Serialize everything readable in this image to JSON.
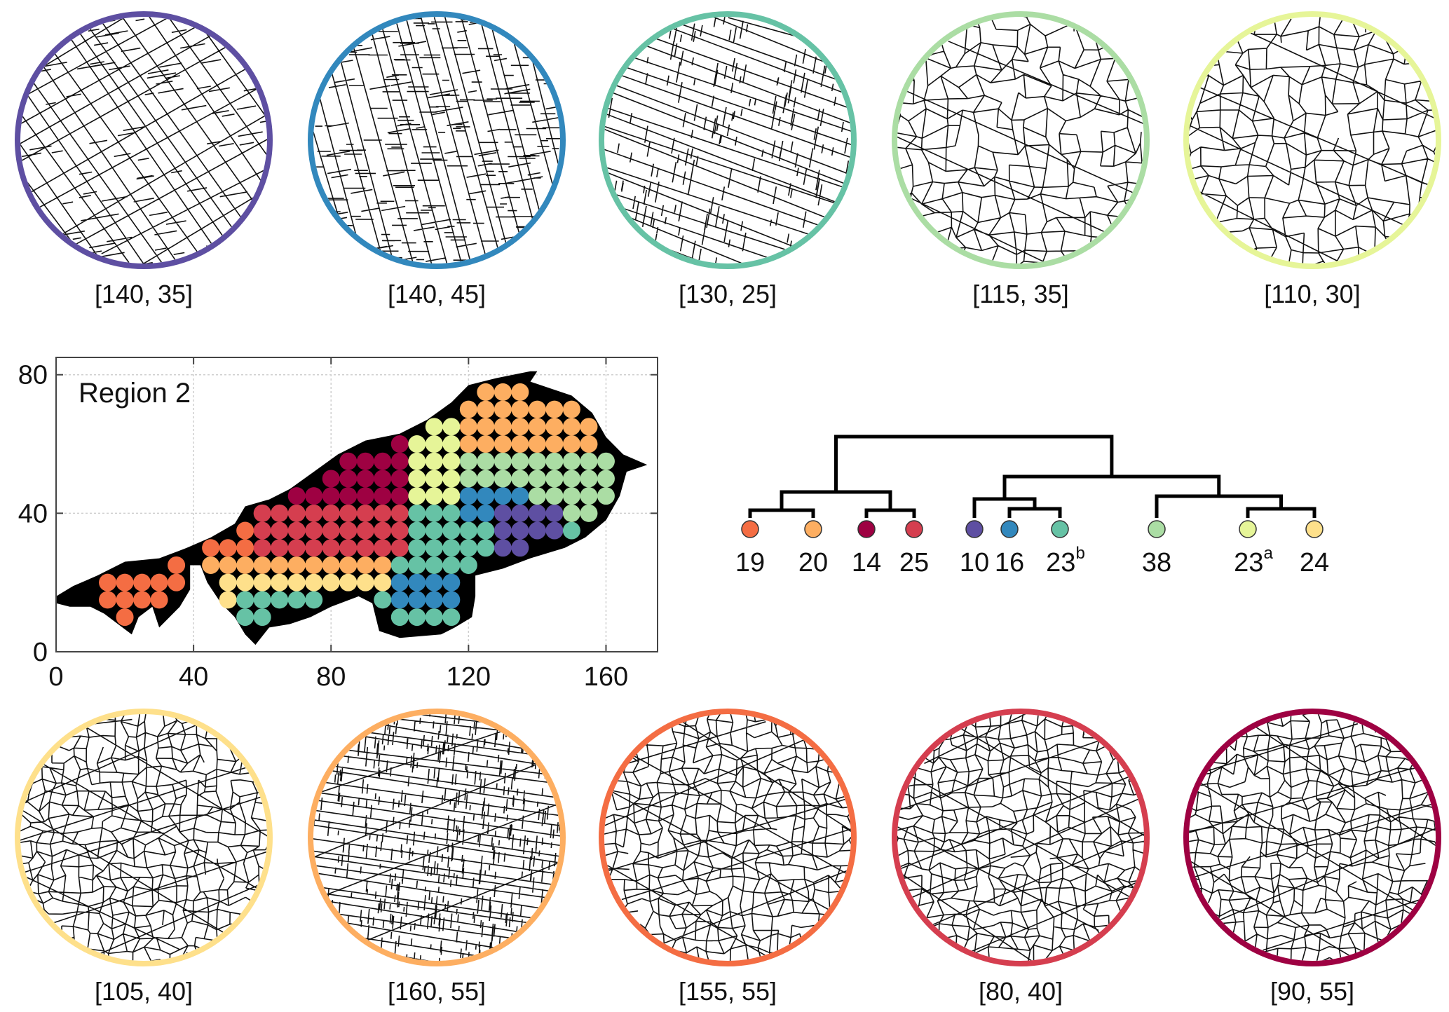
{
  "top_row": [
    {
      "label": "[140, 35]",
      "color": "#5e4fa2",
      "style": "diag"
    },
    {
      "label": "[140, 45]",
      "color": "#3288bd",
      "style": "steep"
    },
    {
      "label": "[130, 25]",
      "color": "#66c2a5",
      "style": "shallow"
    },
    {
      "label": "[115, 35]",
      "color": "#abdda4",
      "style": "poly"
    },
    {
      "label": "[110, 30]",
      "color": "#e6f598",
      "style": "poly"
    }
  ],
  "bottom_row": [
    {
      "label": "[105, 40]",
      "color": "#fee08b",
      "style": "dense"
    },
    {
      "label": "[160, 55]",
      "color": "#fdae61",
      "style": "bricks"
    },
    {
      "label": "[155, 55]",
      "color": "#f46d43",
      "style": "dense"
    },
    {
      "label": "[80, 40]",
      "color": "#d53e4f",
      "style": "dense"
    },
    {
      "label": "[90, 55]",
      "color": "#9e0142",
      "style": "dense"
    }
  ],
  "map": {
    "region_label": "Region 2",
    "x_ticks": [
      "0",
      "40",
      "80",
      "120",
      "160"
    ],
    "y_ticks": [
      "0",
      "40",
      "80"
    ],
    "xlim": [
      0,
      175
    ],
    "ylim": [
      0,
      85
    ]
  },
  "dendrogram": {
    "leaves": [
      {
        "label": "19",
        "sup": "",
        "color": "#f46d43"
      },
      {
        "label": "20",
        "sup": "",
        "color": "#fdae61"
      },
      {
        "label": "14",
        "sup": "",
        "color": "#9e0142"
      },
      {
        "label": "25",
        "sup": "",
        "color": "#d53e4f"
      },
      {
        "label": "10",
        "sup": "",
        "color": "#5e4fa2"
      },
      {
        "label": "16",
        "sup": "",
        "color": "#3288bd"
      },
      {
        "label": "23",
        "sup": "b",
        "color": "#66c2a5"
      },
      {
        "label": "38",
        "sup": "",
        "color": "#abdda4"
      },
      {
        "label": "23",
        "sup": "a",
        "color": "#e6f598"
      },
      {
        "label": "24",
        "sup": "",
        "color": "#fee08b"
      }
    ]
  }
}
